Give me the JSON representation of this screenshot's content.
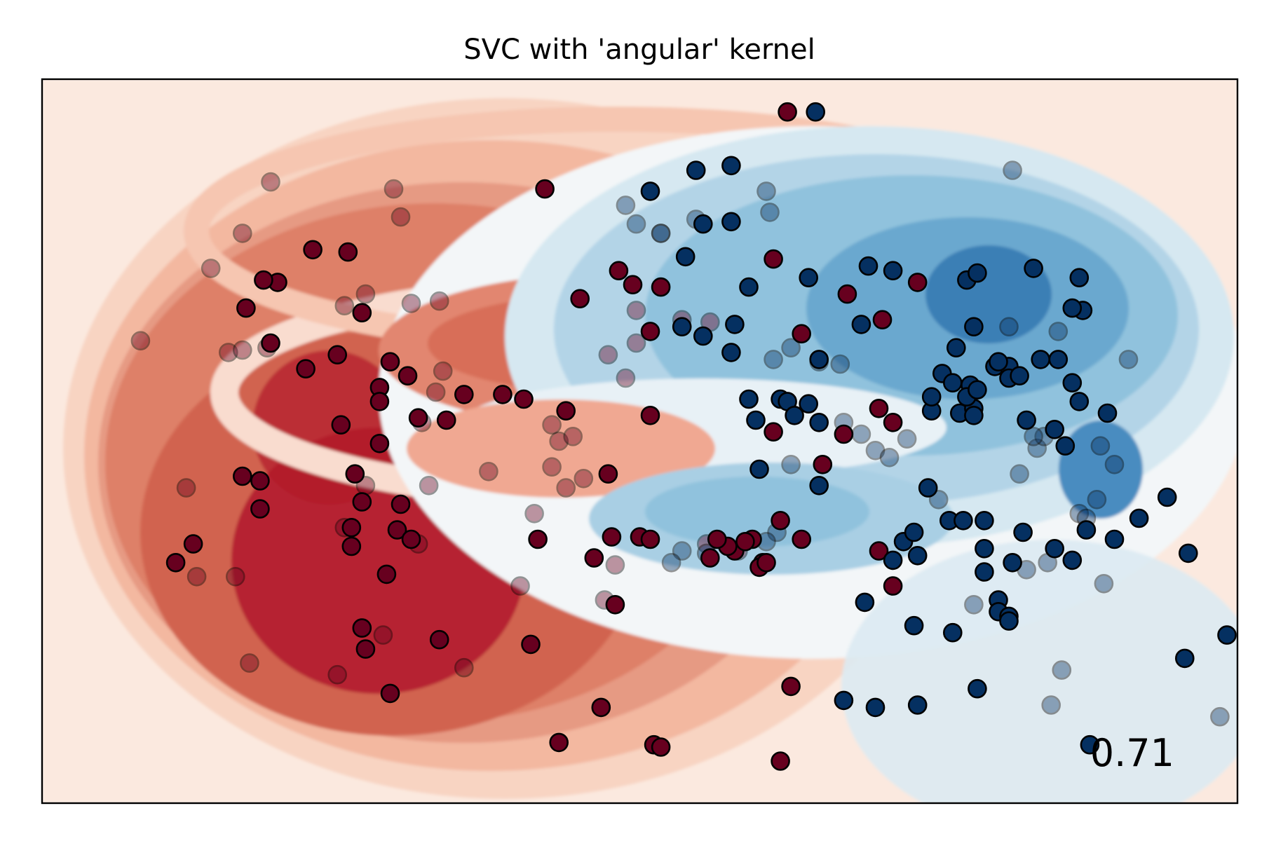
{
  "chart_data": {
    "type": "scatter",
    "title": "SVC with 'angular' kernel",
    "score_label": "0.71",
    "xlim": [
      -1.3,
      2.1
    ],
    "ylim": [
      -1.3,
      1.8
    ],
    "xticks": [],
    "yticks": [],
    "grid": false,
    "background": "decision-function contour, RdBu colormap",
    "colors": {
      "class_0": "#67001f",
      "class_1": "#053061",
      "test_point_alpha": 0.4,
      "contour_red_dark": "#b2182b",
      "contour_red_mid": "#e0806a",
      "contour_red_light": "#f8d4c2",
      "contour_neutral": "#f3f6f8",
      "contour_blue_light": "#d6e8f1",
      "contour_blue_mid": "#90c2dd",
      "contour_blue_dark": "#3a7fb5"
    },
    "series": [
      {
        "role": "train",
        "label": 0,
        "points": [
          [
            0.82,
            1.66
          ],
          [
            0.13,
            1.33
          ],
          [
            -0.53,
            1.07
          ],
          [
            -0.43,
            1.06
          ],
          [
            -0.63,
            0.93
          ],
          [
            -0.67,
            0.94
          ],
          [
            0.34,
            0.98
          ],
          [
            0.78,
            1.03
          ],
          [
            -0.72,
            0.82
          ],
          [
            0.38,
            0.92
          ],
          [
            0.46,
            0.91
          ],
          [
            0.23,
            0.86
          ],
          [
            -0.39,
            0.8
          ],
          [
            -0.65,
            0.67
          ],
          [
            -0.46,
            0.62
          ],
          [
            -0.55,
            0.56
          ],
          [
            0.43,
            0.72
          ],
          [
            0.86,
            0.71
          ],
          [
            0.99,
            0.88
          ],
          [
            1.19,
            0.93
          ],
          [
            -0.31,
            0.59
          ],
          [
            -0.26,
            0.53
          ],
          [
            -0.34,
            0.48
          ],
          [
            -0.34,
            0.42
          ],
          [
            0.07,
            0.43
          ],
          [
            0.01,
            0.45
          ],
          [
            -0.1,
            0.45
          ],
          [
            -0.23,
            0.35
          ],
          [
            -0.45,
            0.32
          ],
          [
            0.43,
            0.36
          ],
          [
            1.08,
            0.39
          ],
          [
            -0.73,
            0.1
          ],
          [
            -0.68,
            0.08
          ],
          [
            -0.68,
            -0.04
          ],
          [
            0.19,
            0.38
          ],
          [
            -0.15,
            0.34
          ],
          [
            -0.41,
            0.11
          ],
          [
            0.31,
            0.11
          ],
          [
            0.78,
            0.29
          ],
          [
            0.92,
            0.15
          ],
          [
            -0.29,
            -0.13
          ],
          [
            -0.39,
            -0.01
          ],
          [
            -0.42,
            -0.12
          ],
          [
            -0.28,
            -0.02
          ],
          [
            -0.25,
            -0.17
          ],
          [
            -0.42,
            -0.2
          ],
          [
            0.11,
            -0.17
          ],
          [
            -0.87,
            -0.19
          ],
          [
            -0.92,
            -0.27
          ],
          [
            -0.32,
            -0.32
          ],
          [
            0.32,
            -0.16
          ],
          [
            0.4,
            -0.16
          ],
          [
            0.43,
            -0.17
          ],
          [
            0.72,
            -0.17
          ],
          [
            0.86,
            -0.17
          ],
          [
            0.67,
            -0.22
          ],
          [
            0.27,
            -0.25
          ],
          [
            -0.17,
            -0.6
          ],
          [
            0.09,
            -0.62
          ],
          [
            0.75,
            -0.27
          ],
          [
            0.74,
            -0.29
          ],
          [
            0.65,
            -0.2
          ],
          [
            0.8,
            -0.09
          ],
          [
            0.62,
            -0.17
          ],
          [
            1.08,
            -0.22
          ],
          [
            1.12,
            -0.37
          ],
          [
            1.12,
            0.33
          ],
          [
            0.98,
            0.28
          ],
          [
            -0.34,
            0.24
          ],
          [
            0.83,
            -0.8
          ],
          [
            0.76,
            -0.27
          ],
          [
            0.6,
            -0.25
          ],
          [
            0.7,
            -0.18
          ],
          [
            1.09,
            0.77
          ],
          [
            0.44,
            -1.05
          ],
          [
            -0.31,
            -0.83
          ],
          [
            0.29,
            -0.89
          ],
          [
            0.17,
            -1.04
          ],
          [
            0.8,
            -1.12
          ],
          [
            0.46,
            -1.06
          ],
          [
            -0.38,
            -0.64
          ],
          [
            -0.39,
            -0.55
          ],
          [
            0.33,
            -0.45
          ]
        ]
      },
      {
        "role": "train",
        "label": 1,
        "points": [
          [
            0.9,
            1.66
          ],
          [
            0.43,
            1.32
          ],
          [
            0.58,
            1.18
          ],
          [
            0.66,
            1.19
          ],
          [
            1.05,
            1.0
          ],
          [
            1.12,
            0.98
          ],
          [
            1.33,
            0.94
          ],
          [
            1.36,
            0.97
          ],
          [
            1.52,
            0.99
          ],
          [
            1.65,
            0.95
          ],
          [
            1.66,
            0.81
          ],
          [
            1.63,
            0.82
          ],
          [
            0.52,
            0.74
          ],
          [
            0.58,
            0.7
          ],
          [
            0.67,
            0.75
          ],
          [
            0.66,
            0.63
          ],
          [
            1.35,
            0.74
          ],
          [
            1.3,
            0.65
          ],
          [
            1.26,
            0.54
          ],
          [
            1.29,
            0.5
          ],
          [
            1.34,
            0.49
          ],
          [
            1.41,
            0.57
          ],
          [
            1.45,
            0.57
          ],
          [
            1.42,
            0.59
          ],
          [
            1.45,
            0.52
          ],
          [
            1.54,
            0.6
          ],
          [
            1.59,
            0.6
          ],
          [
            1.63,
            0.5
          ],
          [
            1.65,
            0.42
          ],
          [
            1.73,
            0.37
          ],
          [
            0.71,
            0.43
          ],
          [
            0.8,
            0.43
          ],
          [
            0.82,
            0.42
          ],
          [
            0.88,
            0.41
          ],
          [
            0.84,
            0.36
          ],
          [
            0.73,
            0.34
          ],
          [
            0.91,
            0.33
          ],
          [
            1.23,
            0.38
          ],
          [
            1.31,
            0.37
          ],
          [
            1.35,
            0.39
          ],
          [
            1.35,
            0.36
          ],
          [
            1.33,
            0.44
          ],
          [
            1.23,
            0.44
          ],
          [
            1.36,
            0.47
          ],
          [
            1.48,
            0.53
          ],
          [
            1.5,
            0.34
          ],
          [
            1.58,
            0.3
          ],
          [
            1.61,
            0.23
          ],
          [
            0.74,
            0.13
          ],
          [
            0.91,
            0.06
          ],
          [
            1.22,
            0.05
          ],
          [
            1.28,
            -0.09
          ],
          [
            1.32,
            -0.09
          ],
          [
            1.12,
            -0.26
          ],
          [
            1.19,
            -0.24
          ],
          [
            1.15,
            -0.18
          ],
          [
            1.18,
            -0.14
          ],
          [
            1.49,
            -0.14
          ],
          [
            1.63,
            -0.26
          ],
          [
            1.58,
            -0.21
          ],
          [
            1.75,
            -0.17
          ],
          [
            1.67,
            -0.13
          ],
          [
            1.82,
            -0.08
          ],
          [
            1.9,
            0.01
          ],
          [
            1.96,
            -0.23
          ],
          [
            1.38,
            -0.09
          ],
          [
            1.38,
            -0.21
          ],
          [
            1.38,
            -0.31
          ],
          [
            1.46,
            -0.27
          ],
          [
            1.04,
            -0.44
          ],
          [
            1.18,
            -0.54
          ],
          [
            1.29,
            -0.57
          ],
          [
            1.42,
            -0.43
          ],
          [
            1.42,
            -0.48
          ],
          [
            1.45,
            -0.5
          ],
          [
            1.45,
            -0.52
          ],
          [
            1.19,
            -0.88
          ],
          [
            1.36,
            -0.81
          ],
          [
            0.98,
            -0.86
          ],
          [
            1.07,
            -0.89
          ],
          [
            1.68,
            -1.05
          ],
          [
            1.95,
            -0.68
          ],
          [
            2.07,
            -0.58
          ],
          [
            0.56,
            1.41
          ],
          [
            0.53,
            1.04
          ],
          [
            0.71,
            0.91
          ],
          [
            0.88,
            0.95
          ],
          [
            1.03,
            0.75
          ],
          [
            0.91,
            0.6
          ],
          [
            0.66,
            1.43
          ]
        ]
      },
      {
        "role": "test",
        "label": 0,
        "points": [
          [
            -0.65,
            1.36
          ],
          [
            -0.3,
            1.33
          ],
          [
            -0.28,
            1.21
          ],
          [
            -0.73,
            1.14
          ],
          [
            -0.82,
            0.99
          ],
          [
            -0.38,
            0.88
          ],
          [
            -1.02,
            0.68
          ],
          [
            -0.77,
            0.63
          ],
          [
            -0.73,
            0.64
          ],
          [
            -0.66,
            0.65
          ],
          [
            -0.44,
            0.83
          ],
          [
            -0.25,
            0.84
          ],
          [
            -0.17,
            0.85
          ],
          [
            0.39,
            0.81
          ],
          [
            0.52,
            0.77
          ],
          [
            0.6,
            0.76
          ],
          [
            0.39,
            0.67
          ],
          [
            0.31,
            0.62
          ],
          [
            0.36,
            0.52
          ],
          [
            -0.16,
            0.55
          ],
          [
            -0.18,
            0.46
          ],
          [
            0.17,
            0.25
          ],
          [
            0.21,
            0.27
          ],
          [
            -0.38,
            0.06
          ],
          [
            -0.89,
            0.05
          ],
          [
            0.19,
            0.05
          ],
          [
            -0.03,
            0.12
          ],
          [
            0.24,
            0.09
          ],
          [
            -0.2,
            0.06
          ],
          [
            0.15,
            0.14
          ],
          [
            -0.44,
            -0.12
          ],
          [
            0.59,
            -0.19
          ],
          [
            0.33,
            -0.28
          ],
          [
            0.1,
            -0.06
          ],
          [
            0.06,
            -0.37
          ],
          [
            -0.46,
            -0.75
          ],
          [
            -0.71,
            -0.7
          ],
          [
            -0.75,
            -0.33
          ],
          [
            -0.33,
            -0.58
          ],
          [
            -0.1,
            -0.72
          ],
          [
            0.3,
            -0.43
          ],
          [
            0.68,
            -0.22
          ],
          [
            -0.23,
            -0.19
          ],
          [
            -0.86,
            -0.33
          ],
          [
            0.15,
            0.32
          ],
          [
            -0.22,
            0.33
          ]
        ]
      },
      {
        "role": "test",
        "label": 1,
        "points": [
          [
            0.76,
            1.32
          ],
          [
            0.77,
            1.23
          ],
          [
            0.56,
            1.2
          ],
          [
            0.39,
            1.18
          ],
          [
            0.36,
            1.26
          ],
          [
            0.46,
            1.14
          ],
          [
            0.46,
            1.14
          ],
          [
            1.46,
            1.41
          ],
          [
            1.45,
            0.74
          ],
          [
            1.59,
            0.72
          ],
          [
            1.79,
            0.6
          ],
          [
            0.83,
            0.65
          ],
          [
            0.78,
            0.6
          ],
          [
            0.91,
            0.59
          ],
          [
            0.97,
            0.58
          ],
          [
            1.48,
            0.11
          ],
          [
            1.53,
            0.22
          ],
          [
            1.71,
            0.23
          ],
          [
            1.75,
            0.15
          ],
          [
            1.7,
            0.0
          ],
          [
            1.65,
            -0.06
          ],
          [
            1.67,
            -0.08
          ],
          [
            1.55,
            0.27
          ],
          [
            1.52,
            0.27
          ],
          [
            1.07,
            0.21
          ],
          [
            1.03,
            0.28
          ],
          [
            1.16,
            0.26
          ],
          [
            1.11,
            0.18
          ],
          [
            1.5,
            -0.3
          ],
          [
            1.56,
            -0.27
          ],
          [
            1.72,
            -0.36
          ],
          [
            1.6,
            -0.73
          ],
          [
            1.57,
            -0.88
          ],
          [
            2.05,
            -0.93
          ],
          [
            0.83,
            0.15
          ],
          [
            0.98,
            0.33
          ],
          [
            1.25,
            0.0
          ],
          [
            0.79,
            -0.14
          ],
          [
            0.52,
            -0.22
          ],
          [
            0.59,
            -0.23
          ],
          [
            0.49,
            -0.27
          ],
          [
            1.35,
            -0.45
          ],
          [
            0.76,
            -0.18
          ]
        ]
      }
    ]
  }
}
